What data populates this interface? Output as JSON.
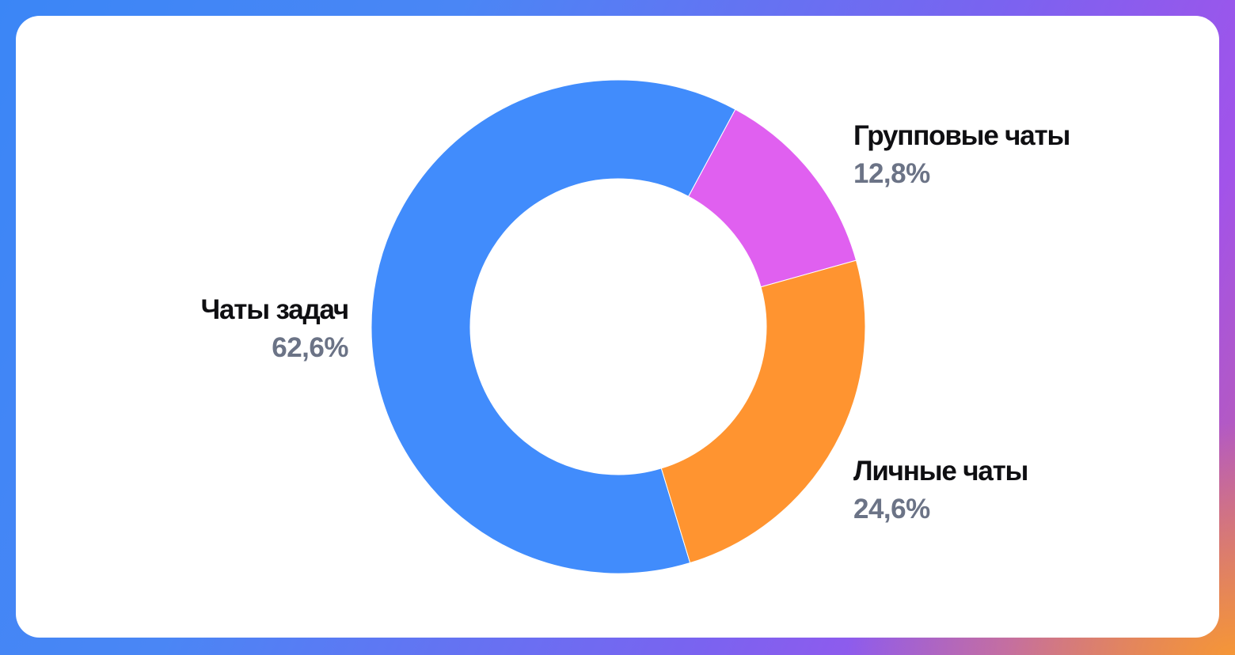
{
  "chart_data": {
    "type": "pie",
    "subtype": "donut",
    "title": "",
    "categories": [
      "Чаты задач",
      "Групповые чаты",
      "Личные чаты"
    ],
    "values": [
      62.6,
      12.8,
      24.6
    ],
    "value_labels": [
      "62,6%",
      "12,8%",
      "24,6%"
    ],
    "colors": [
      "#418CFC",
      "#E060F0",
      "#FF9430"
    ],
    "unit": "%",
    "legend": "none (direct labels next to segments)"
  },
  "labels": {
    "tasks": {
      "name": "Чаты задач",
      "pct": "62,6%"
    },
    "group": {
      "name": "Групповые чаты",
      "pct": "12,8%"
    },
    "personal": {
      "name": "Личные чаты",
      "pct": "24,6%"
    }
  },
  "segments": [
    {
      "key": "tasks",
      "start_deg": 163.1,
      "end_deg": 388.3,
      "color": "#418CFC"
    },
    {
      "key": "group",
      "start_deg": 28.3,
      "end_deg": 74.4,
      "color": "#E060F0"
    },
    {
      "key": "personal",
      "start_deg": 74.4,
      "end_deg": 163.1,
      "color": "#FF9430"
    }
  ]
}
